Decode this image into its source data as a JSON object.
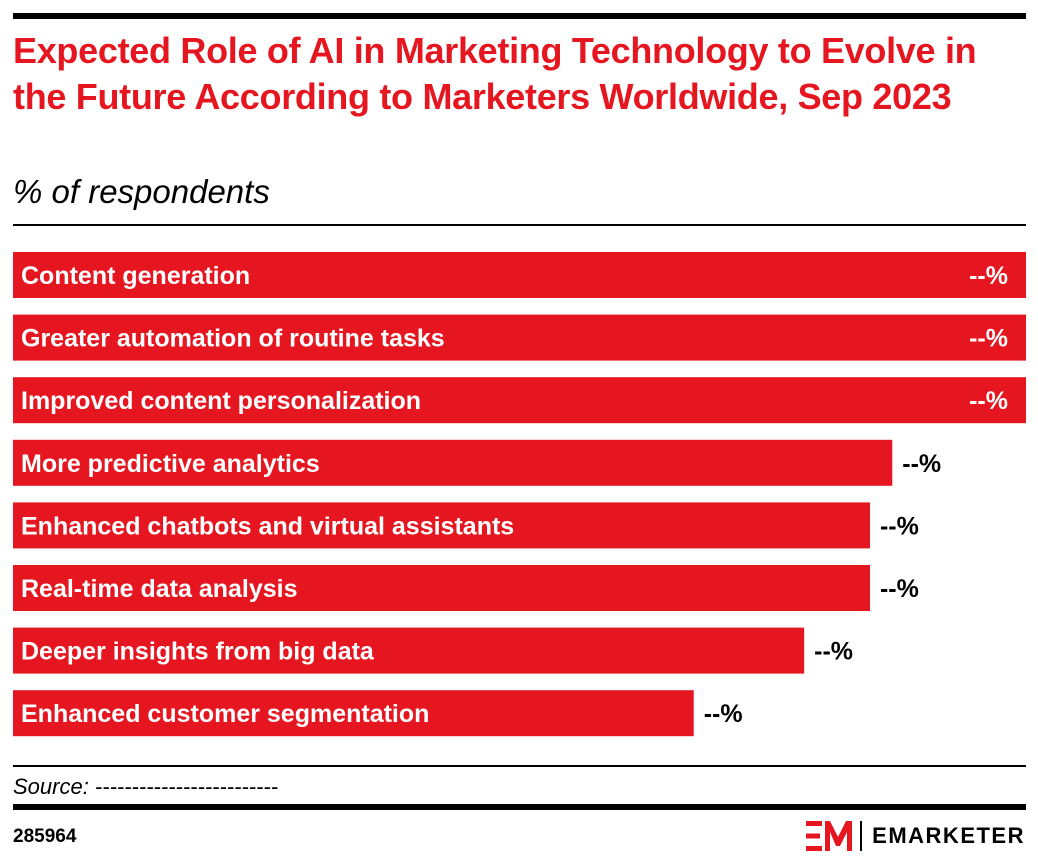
{
  "header": {
    "title": "Expected Role of AI in Marketing Technology to Evolve in the Future According to Marketers Worldwide, Sep 2023",
    "subtitle": "% of respondents"
  },
  "chart_data": {
    "type": "bar",
    "orientation": "horizontal",
    "categories": [
      "Content generation",
      "Greater automation of routine tasks",
      "Improved content personalization",
      "More predictive analytics",
      "Enhanced chatbots and virtual assistants",
      "Real-time data analysis",
      "Deeper insights from big data",
      "Enhanced customer segmentation"
    ],
    "values": [
      100,
      100,
      100,
      86.8,
      84.6,
      84.6,
      78.1,
      67.2
    ],
    "value_labels": [
      "--%",
      "--%",
      "--%",
      "--%",
      "--%",
      "--%",
      "--%",
      "--%"
    ],
    "xlim": [
      0,
      100
    ],
    "bar_color": "#e5161f",
    "grid": false
  },
  "footer": {
    "source": "Source: -------------------------",
    "chart_id": "285964",
    "brand": "EMARKETER",
    "brand_color": "#e5161f",
    "logo_icon": "em-logo-icon"
  }
}
